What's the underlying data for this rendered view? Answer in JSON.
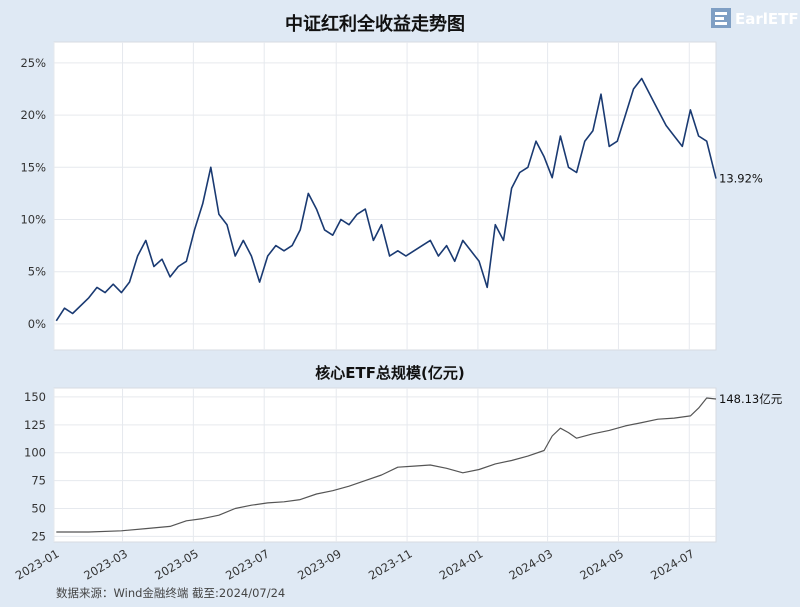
{
  "logo": {
    "text": "EarlETF"
  },
  "source_note": "数据来源：Wind金融终端 截至:2024/07/24",
  "chart_data": [
    {
      "type": "line",
      "title": "中证红利全收益走势图",
      "ylim": [
        -2.5,
        27
      ],
      "yticks": [
        0,
        5,
        10,
        15,
        20,
        25
      ],
      "ytick_labels": [
        "0%",
        "5%",
        "10%",
        "15%",
        "20%",
        "25%"
      ],
      "xlim": [
        "2023-01-01",
        "2024-07-24"
      ],
      "grid": true,
      "color": "#1a3a72",
      "end_label": "13.92%",
      "x": [
        "2023-01-03",
        "2023-01-10",
        "2023-01-17",
        "2023-01-31",
        "2023-02-07",
        "2023-02-14",
        "2023-02-21",
        "2023-02-28",
        "2023-03-07",
        "2023-03-14",
        "2023-03-21",
        "2023-03-28",
        "2023-04-04",
        "2023-04-11",
        "2023-04-18",
        "2023-04-25",
        "2023-05-02",
        "2023-05-09",
        "2023-05-16",
        "2023-05-23",
        "2023-05-30",
        "2023-06-06",
        "2023-06-13",
        "2023-06-20",
        "2023-06-27",
        "2023-07-04",
        "2023-07-11",
        "2023-07-18",
        "2023-07-25",
        "2023-08-01",
        "2023-08-08",
        "2023-08-15",
        "2023-08-22",
        "2023-08-29",
        "2023-09-05",
        "2023-09-12",
        "2023-09-19",
        "2023-09-26",
        "2023-10-03",
        "2023-10-10",
        "2023-10-17",
        "2023-10-24",
        "2023-10-31",
        "2023-11-07",
        "2023-11-14",
        "2023-11-21",
        "2023-11-28",
        "2023-12-05",
        "2023-12-12",
        "2023-12-19",
        "2023-12-26",
        "2024-01-02",
        "2024-01-09",
        "2024-01-16",
        "2024-01-23",
        "2024-01-30",
        "2024-02-06",
        "2024-02-13",
        "2024-02-20",
        "2024-02-27",
        "2024-03-05",
        "2024-03-12",
        "2024-03-19",
        "2024-03-26",
        "2024-04-02",
        "2024-04-09",
        "2024-04-16",
        "2024-04-23",
        "2024-04-30",
        "2024-05-07",
        "2024-05-14",
        "2024-05-21",
        "2024-05-28",
        "2024-06-04",
        "2024-06-11",
        "2024-06-18",
        "2024-06-25",
        "2024-07-02",
        "2024-07-09",
        "2024-07-16",
        "2024-07-24"
      ],
      "values": [
        0.3,
        1.5,
        1.0,
        2.5,
        3.5,
        3.0,
        3.8,
        3.0,
        4.0,
        6.5,
        8.0,
        5.5,
        6.2,
        4.5,
        5.5,
        6.0,
        9.0,
        11.5,
        15.0,
        10.5,
        9.5,
        6.5,
        8.0,
        6.5,
        4.0,
        6.5,
        7.5,
        7.0,
        7.5,
        9.0,
        12.5,
        11.0,
        9.0,
        8.5,
        10.0,
        9.5,
        10.5,
        11.0,
        8.0,
        9.5,
        6.5,
        7.0,
        6.5,
        7.0,
        7.5,
        8.0,
        6.5,
        7.5,
        6.0,
        8.0,
        7.0,
        6.0,
        3.5,
        9.5,
        8.0,
        13.0,
        14.5,
        15.0,
        17.5,
        16.0,
        14.0,
        18.0,
        15.0,
        14.5,
        17.5,
        18.5,
        22.0,
        17.0,
        17.5,
        20.0,
        22.5,
        23.5,
        22.0,
        20.5,
        19.0,
        18.0,
        17.0,
        20.5,
        18.0,
        17.5,
        13.92
      ]
    },
    {
      "type": "line",
      "title": "核心ETF总规模(亿元)",
      "ylim": [
        20,
        158
      ],
      "yticks": [
        25,
        50,
        75,
        100,
        125,
        150
      ],
      "ytick_labels": [
        "25",
        "50",
        "75",
        "100",
        "125",
        "150"
      ],
      "xlim": [
        "2023-01-01",
        "2024-07-24"
      ],
      "grid": true,
      "color": "#555555",
      "end_label": "148.13亿元",
      "xtick_labels": [
        "2023-01",
        "2023-03",
        "2023-05",
        "2023-07",
        "2023-09",
        "2023-11",
        "2024-01",
        "2024-03",
        "2024-05",
        "2024-07"
      ],
      "xticks": [
        "2023-01-01",
        "2023-03-01",
        "2023-05-01",
        "2023-07-01",
        "2023-09-01",
        "2023-11-01",
        "2024-01-01",
        "2024-03-01",
        "2024-05-01",
        "2024-07-01"
      ],
      "x": [
        "2023-01-03",
        "2023-01-31",
        "2023-02-28",
        "2023-03-21",
        "2023-04-11",
        "2023-04-25",
        "2023-05-09",
        "2023-05-23",
        "2023-06-06",
        "2023-06-20",
        "2023-07-04",
        "2023-07-18",
        "2023-08-01",
        "2023-08-15",
        "2023-08-29",
        "2023-09-12",
        "2023-09-26",
        "2023-10-10",
        "2023-10-24",
        "2023-11-07",
        "2023-11-21",
        "2023-12-05",
        "2023-12-19",
        "2024-01-02",
        "2024-01-16",
        "2024-01-30",
        "2024-02-13",
        "2024-02-27",
        "2024-03-05",
        "2024-03-12",
        "2024-03-19",
        "2024-03-26",
        "2024-04-09",
        "2024-04-23",
        "2024-05-07",
        "2024-05-21",
        "2024-06-04",
        "2024-06-18",
        "2024-07-02",
        "2024-07-09",
        "2024-07-16",
        "2024-07-24"
      ],
      "values": [
        29,
        29,
        30,
        32,
        34,
        39,
        41,
        44,
        50,
        53,
        55,
        56,
        58,
        63,
        66,
        70,
        75,
        80,
        87,
        88,
        89,
        86,
        82,
        85,
        90,
        93,
        97,
        102,
        115,
        122,
        118,
        113,
        117,
        120,
        124,
        127,
        130,
        131,
        133,
        140,
        149,
        148.13
      ]
    }
  ]
}
